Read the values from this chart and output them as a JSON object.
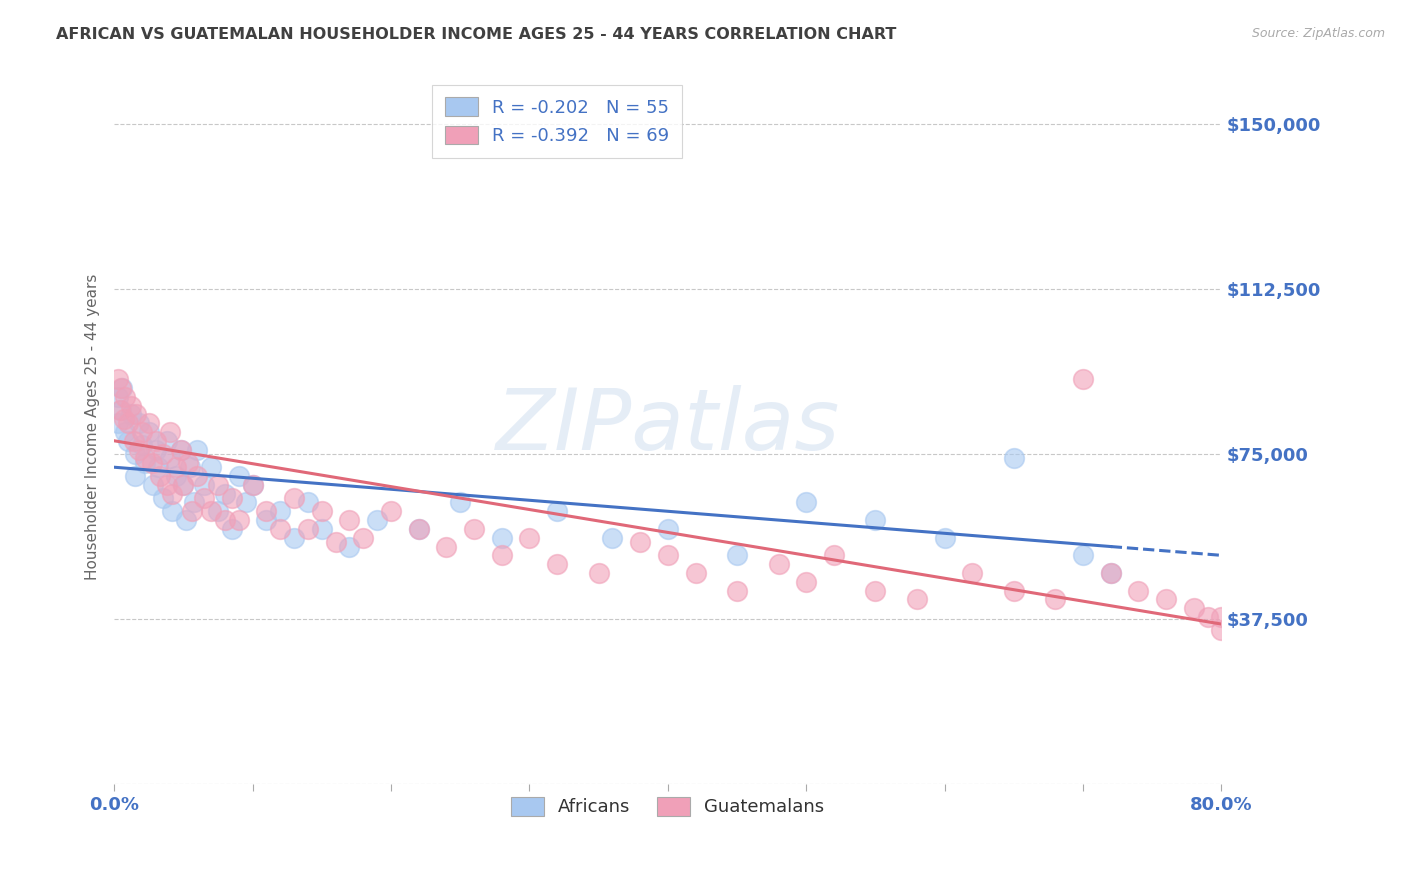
{
  "title": "AFRICAN VS GUATEMALAN HOUSEHOLDER INCOME AGES 25 - 44 YEARS CORRELATION CHART",
  "source_text": "Source: ZipAtlas.com",
  "ylabel": "Householder Income Ages 25 - 44 years",
  "xlim": [
    0,
    0.8
  ],
  "ylim": [
    0,
    162500
  ],
  "yticks": [
    0,
    37500,
    75000,
    112500,
    150000
  ],
  "ytick_labels": [
    "",
    "$37,500",
    "$75,000",
    "$112,500",
    "$150,000"
  ],
  "xticks": [
    0.0,
    0.1,
    0.2,
    0.3,
    0.4,
    0.5,
    0.6,
    0.7,
    0.8
  ],
  "african_color": "#A8C8F0",
  "guatemalan_color": "#F0A0B8",
  "african_line_color": "#4472C4",
  "guatemalan_line_color": "#E06878",
  "axis_label_color": "#4472C4",
  "title_color": "#404040",
  "african_R": -0.202,
  "african_N": 55,
  "guatemalan_R": -0.392,
  "guatemalan_N": 69,
  "african_intercept": 72000,
  "african_slope": -25000,
  "guatemalan_intercept": 78000,
  "guatemalan_slope": -52000,
  "african_x": [
    0.003,
    0.003,
    0.005,
    0.006,
    0.008,
    0.01,
    0.012,
    0.015,
    0.015,
    0.018,
    0.02,
    0.022,
    0.025,
    0.028,
    0.03,
    0.032,
    0.035,
    0.038,
    0.04,
    0.042,
    0.045,
    0.048,
    0.05,
    0.052,
    0.055,
    0.058,
    0.06,
    0.065,
    0.07,
    0.075,
    0.08,
    0.085,
    0.09,
    0.095,
    0.1,
    0.11,
    0.12,
    0.13,
    0.14,
    0.15,
    0.17,
    0.19,
    0.22,
    0.25,
    0.28,
    0.32,
    0.36,
    0.4,
    0.45,
    0.5,
    0.55,
    0.6,
    0.65,
    0.7,
    0.72
  ],
  "african_y": [
    88000,
    82000,
    85000,
    90000,
    80000,
    78000,
    84000,
    75000,
    70000,
    82000,
    77000,
    73000,
    80000,
    68000,
    76000,
    72000,
    65000,
    78000,
    74000,
    62000,
    70000,
    76000,
    68000,
    60000,
    72000,
    64000,
    76000,
    68000,
    72000,
    62000,
    66000,
    58000,
    70000,
    64000,
    68000,
    60000,
    62000,
    56000,
    64000,
    58000,
    54000,
    60000,
    58000,
    64000,
    56000,
    62000,
    56000,
    58000,
    52000,
    64000,
    60000,
    56000,
    74000,
    52000,
    48000
  ],
  "guatemalan_x": [
    0.003,
    0.004,
    0.005,
    0.007,
    0.008,
    0.01,
    0.012,
    0.014,
    0.016,
    0.018,
    0.02,
    0.022,
    0.025,
    0.027,
    0.03,
    0.033,
    0.035,
    0.038,
    0.04,
    0.042,
    0.045,
    0.048,
    0.05,
    0.053,
    0.056,
    0.06,
    0.065,
    0.07,
    0.075,
    0.08,
    0.085,
    0.09,
    0.1,
    0.11,
    0.12,
    0.13,
    0.14,
    0.15,
    0.16,
    0.17,
    0.18,
    0.2,
    0.22,
    0.24,
    0.26,
    0.28,
    0.3,
    0.32,
    0.35,
    0.38,
    0.4,
    0.42,
    0.45,
    0.48,
    0.5,
    0.52,
    0.55,
    0.58,
    0.62,
    0.65,
    0.68,
    0.7,
    0.72,
    0.74,
    0.76,
    0.78,
    0.79,
    0.8,
    0.8
  ],
  "guatemalan_y": [
    92000,
    85000,
    90000,
    83000,
    88000,
    82000,
    86000,
    78000,
    84000,
    76000,
    80000,
    74000,
    82000,
    73000,
    78000,
    70000,
    75000,
    68000,
    80000,
    66000,
    72000,
    76000,
    68000,
    73000,
    62000,
    70000,
    65000,
    62000,
    68000,
    60000,
    65000,
    60000,
    68000,
    62000,
    58000,
    65000,
    58000,
    62000,
    55000,
    60000,
    56000,
    62000,
    58000,
    54000,
    58000,
    52000,
    56000,
    50000,
    48000,
    55000,
    52000,
    48000,
    44000,
    50000,
    46000,
    52000,
    44000,
    42000,
    48000,
    44000,
    42000,
    92000,
    48000,
    44000,
    42000,
    40000,
    38000,
    38000,
    35000
  ]
}
